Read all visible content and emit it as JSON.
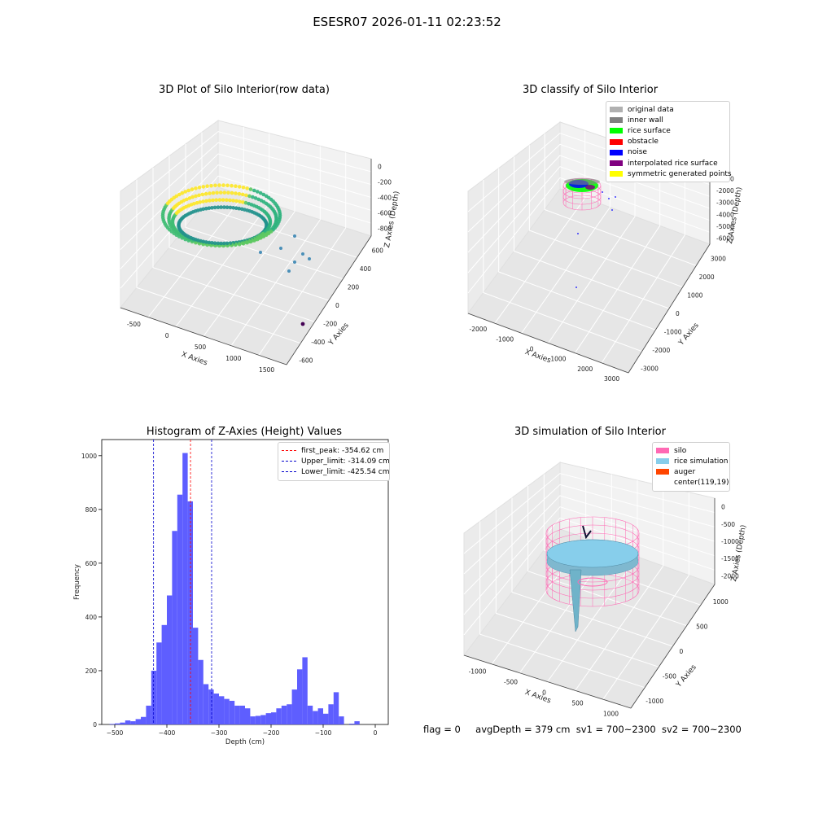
{
  "suptitle": "ESESR07 2026-01-11 02:23:52",
  "colors": {
    "viridis_low": "#3b528b",
    "viridis_mid": "#21918c",
    "viridis_green": "#5ec962",
    "viridis_high": "#fde725",
    "silo": "#ff69b4",
    "rice_simulation": "#87ceeb",
    "auger": "#ff4500",
    "histogram_bar": "#5555ff",
    "peak_line": "#ff0000",
    "limit_line": "#0000cc"
  },
  "chart_data": [
    {
      "type": "scatter",
      "projection": "3d",
      "title": "3D Plot of Silo Interior(row data)",
      "xlabel": "X Axies",
      "ylabel": "Y Axies",
      "zlabel": "Z Axies (Depth)",
      "x_ticks": [
        "-500",
        "0",
        "500",
        "1000",
        "1500"
      ],
      "y_ticks": [
        "-600",
        "-400",
        "-200",
        "0",
        "200",
        "400",
        "600"
      ],
      "z_ticks": [
        "-800",
        "-600",
        "-400",
        "-200",
        "0"
      ],
      "grid": true
    },
    {
      "type": "scatter",
      "projection": "3d",
      "title": "3D classify of Silo Interior",
      "xlabel": "X Axies",
      "ylabel": "Y Axies",
      "zlabel": "Z Axies (Depth)",
      "x_ticks": [
        "-2000",
        "-1000",
        "0",
        "1000",
        "2000",
        "3000"
      ],
      "y_ticks": [
        "-3000",
        "-2000",
        "-1000",
        "0",
        "1000",
        "2000",
        "3000"
      ],
      "z_ticks": [
        "-6000",
        "-5000",
        "-4000",
        "-3000",
        "-2000",
        "-1000"
      ],
      "legend_position": "top-right",
      "legend": [
        {
          "label": "original data",
          "color": "#b0b0b0"
        },
        {
          "label": "inner wall",
          "color": "#808080"
        },
        {
          "label": "rice surface",
          "color": "#00ff00"
        },
        {
          "label": "obstacle",
          "color": "#ff0000"
        },
        {
          "label": "noise",
          "color": "#0000ff"
        },
        {
          "label": "interpolated rice surface",
          "color": "#800080"
        },
        {
          "label": "symmetric generated points",
          "color": "#ffff00"
        }
      ],
      "grid": true
    },
    {
      "type": "bar",
      "title": "Histogram of Z-Axies (Height) Values",
      "xlabel": "Depth (cm)",
      "ylabel": "Frequency",
      "xlim": [
        -525,
        25
      ],
      "ylim": [
        0,
        1060
      ],
      "x_ticks": [
        -500,
        -400,
        -300,
        -200,
        -100,
        0
      ],
      "y_ticks": [
        0,
        200,
        400,
        600,
        800,
        1000
      ],
      "bin_start": -510,
      "bin_width": 10,
      "values": [
        2,
        4,
        7,
        15,
        12,
        20,
        28,
        70,
        200,
        305,
        370,
        480,
        720,
        855,
        1010,
        830,
        360,
        240,
        150,
        130,
        115,
        105,
        95,
        88,
        70,
        70,
        60,
        30,
        32,
        35,
        42,
        45,
        60,
        70,
        75,
        130,
        205,
        250,
        70,
        50,
        60,
        40,
        75,
        120,
        30,
        0,
        3,
        12
      ],
      "lines": [
        {
          "label": "first_peak: -354.62 cm",
          "x": -354.62,
          "color": "#ff0000"
        },
        {
          "label": "Upper_limit: -314.09 cm",
          "x": -314.09,
          "color": "#0000cc"
        },
        {
          "label": "Lower_limit: -425.54 cm",
          "x": -425.54,
          "color": "#0000cc"
        }
      ],
      "legend_position": "top-right",
      "grid": false
    },
    {
      "type": "surface",
      "projection": "3d",
      "title": "3D simulation of Silo Interior",
      "xlabel": "X Axies",
      "ylabel": "Y Axies",
      "zlabel": "Z Axies (Depth)",
      "x_ticks": [
        "-1000",
        "-500",
        "0",
        "500",
        "1000"
      ],
      "y_ticks": [
        "-1000",
        "-500",
        "0",
        "500",
        "1000"
      ],
      "z_ticks": [
        "-2000",
        "-1500",
        "-1000",
        "-500",
        "0"
      ],
      "legend_position": "top-right",
      "legend": [
        {
          "label": "silo",
          "color": "#ff69b4"
        },
        {
          "label": "rice simulation",
          "color": "#87ceeb"
        },
        {
          "label": "auger",
          "color": "#ff4500"
        },
        {
          "label": "center(119,19)",
          "color": ""
        }
      ],
      "grid": true
    }
  ],
  "footer": {
    "flag": "flag = 0",
    "avg_depth": "avgDepth = 379 cm",
    "sv1": "sv1 = 700~2300",
    "sv2": "sv2 = 700~2300"
  }
}
